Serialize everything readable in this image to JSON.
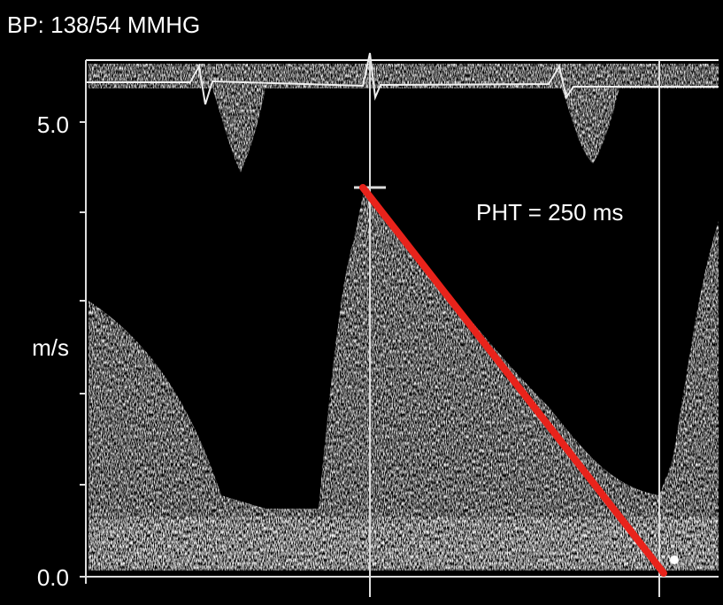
{
  "header": {
    "title": "BP: 138/54  MMHG"
  },
  "axis": {
    "top_label": "5.0",
    "unit_label": "m/s",
    "bottom_label": "0.0"
  },
  "annotation": {
    "text": "PHT = 250 ms"
  }
}
